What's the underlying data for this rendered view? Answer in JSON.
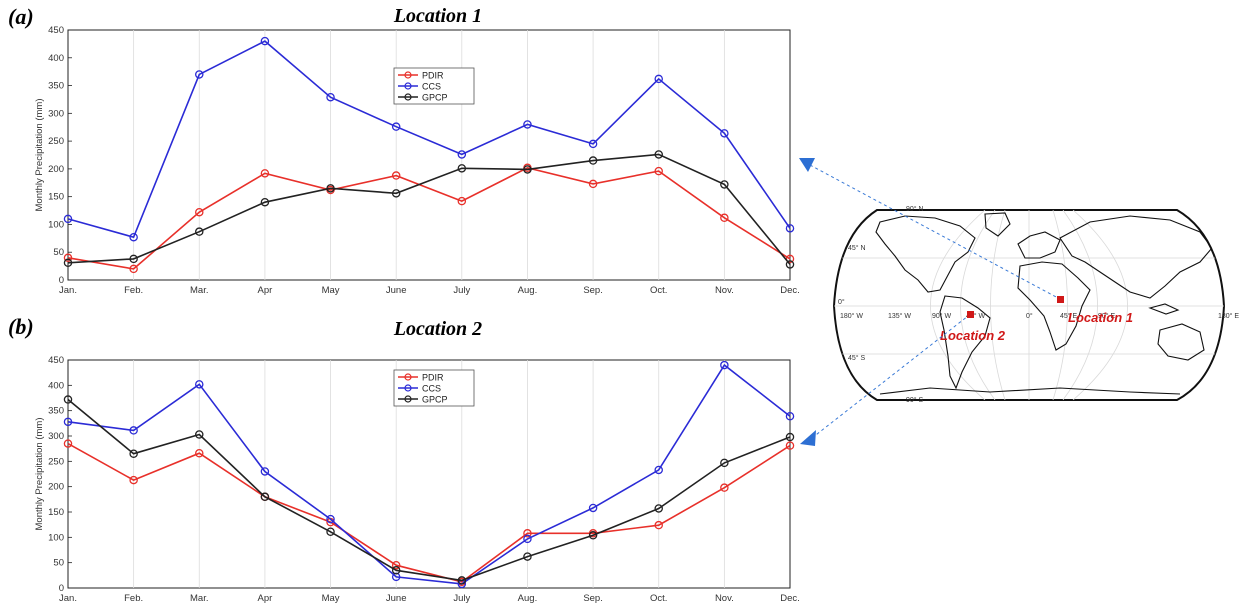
{
  "colors": {
    "pdir": "#e8302a",
    "ccs": "#2b2bd6",
    "gpcp": "#222222",
    "arrow": "#3a7ad6",
    "marker": "#d01818"
  },
  "panels": [
    {
      "tag": "(a)",
      "title": "Location 1"
    },
    {
      "tag": "(b)",
      "title": "Location 2"
    }
  ],
  "map": {
    "lat_labels": [
      "90° N",
      "45° N",
      "0°",
      "45° S",
      "90° S"
    ],
    "lon_labels": [
      "180° W",
      "135° W",
      "90° W",
      "45° W",
      "0°",
      "45° E",
      "90° E",
      "180° E"
    ],
    "location_labels": [
      "Location 1",
      "Location 2"
    ]
  },
  "chart_data": [
    {
      "type": "line",
      "title": "Location 1",
      "ylabel": "Monthly Precipitation (mm)",
      "categories": [
        "Jan.",
        "Feb.",
        "Mar.",
        "Apr",
        "May",
        "June",
        "July",
        "Aug.",
        "Sep.",
        "Oct.",
        "Nov.",
        "Dec."
      ],
      "ylim": [
        0,
        450
      ],
      "yticks": [
        0,
        50,
        100,
        150,
        200,
        250,
        300,
        350,
        400,
        450
      ],
      "grid": "vertical",
      "legend": "top-center",
      "series": [
        {
          "name": "PDIR",
          "color": "#e8302a",
          "values": [
            40,
            20,
            122,
            192,
            162,
            188,
            142,
            202,
            173,
            196,
            112,
            38
          ]
        },
        {
          "name": "CCS",
          "color": "#2b2bd6",
          "values": [
            110,
            77,
            370,
            430,
            329,
            276,
            226,
            280,
            245,
            362,
            264,
            93
          ]
        },
        {
          "name": "GPCP",
          "color": "#222222",
          "values": [
            31,
            38,
            87,
            140,
            165,
            156,
            201,
            199,
            215,
            226,
            172,
            28
          ]
        }
      ]
    },
    {
      "type": "line",
      "title": "Location 2",
      "ylabel": "Monthly Precipitation (mm)",
      "categories": [
        "Jan.",
        "Feb.",
        "Mar.",
        "Apr",
        "May",
        "June",
        "July",
        "Aug.",
        "Sep.",
        "Oct.",
        "Nov.",
        "Dec."
      ],
      "ylim": [
        0,
        450
      ],
      "yticks": [
        0,
        50,
        100,
        150,
        200,
        250,
        300,
        350,
        400,
        450
      ],
      "grid": "vertical",
      "legend": "top-center",
      "series": [
        {
          "name": "PDIR",
          "color": "#e8302a",
          "values": [
            285,
            213,
            266,
            180,
            130,
            45,
            12,
            108,
            108,
            124,
            198,
            281
          ]
        },
        {
          "name": "CCS",
          "color": "#2b2bd6",
          "values": [
            328,
            311,
            402,
            230,
            136,
            22,
            8,
            97,
            158,
            233,
            440,
            339
          ]
        },
        {
          "name": "GPCP",
          "color": "#222222",
          "values": [
            372,
            265,
            303,
            180,
            111,
            35,
            15,
            62,
            104,
            157,
            247,
            298
          ]
        }
      ]
    }
  ]
}
